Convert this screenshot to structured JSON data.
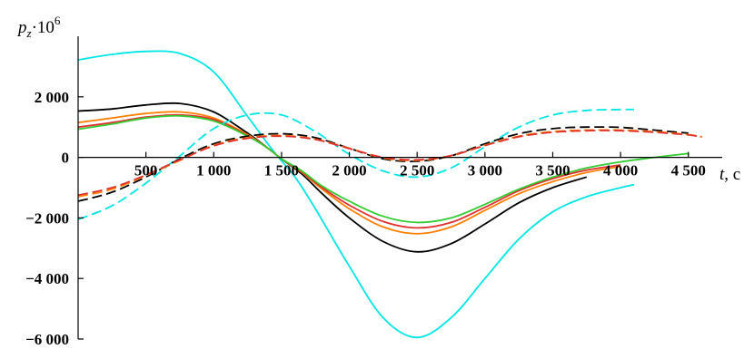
{
  "chart_data": {
    "type": "line",
    "title": "",
    "ylabel": {
      "base": "p",
      "sub": "z",
      "mult": "·10",
      "exp": "6"
    },
    "xlabel": {
      "var": "t",
      "unit": ", c"
    },
    "xlim": [
      0,
      4850
    ],
    "ylim": [
      -6000,
      4000
    ],
    "x_ticks": [
      500,
      1000,
      1500,
      2000,
      2500,
      3000,
      3500,
      4000,
      4500
    ],
    "x_tick_labels": [
      "500",
      "1 000",
      "1 500",
      "2 000",
      "2 500",
      "3 000",
      "3 500",
      "4 000",
      "4 500"
    ],
    "y_ticks": [
      -6000,
      -4000,
      -2000,
      0,
      2000
    ],
    "y_tick_labels": [
      "−6 000",
      "−4 000",
      "−2 000",
      "0",
      "2 000"
    ],
    "grid": false,
    "legend": "none",
    "series": [
      {
        "color": "#00e5e5",
        "style": "solid",
        "x": [
          0,
          250,
          500,
          750,
          1000,
          1250,
          1450,
          1600,
          1750,
          2000,
          2250,
          2500,
          2750,
          3000,
          3250,
          3500,
          3750,
          4000,
          4100
        ],
        "y": [
          3220,
          3400,
          3500,
          3430,
          2820,
          1350,
          150,
          -650,
          -1700,
          -3600,
          -5300,
          -5950,
          -5300,
          -4000,
          -2700,
          -1800,
          -1300,
          -1000,
          -900
        ]
      },
      {
        "color": "#000000",
        "style": "solid",
        "x": [
          0,
          250,
          500,
          750,
          1000,
          1250,
          1400,
          1500,
          1650,
          1800,
          2000,
          2250,
          2500,
          2750,
          3000,
          3250,
          3500,
          3750
        ],
        "y": [
          1530,
          1600,
          1730,
          1780,
          1500,
          800,
          300,
          -50,
          -550,
          -1200,
          -2000,
          -2780,
          -3120,
          -2850,
          -2200,
          -1500,
          -1000,
          -650
        ]
      },
      {
        "color": "#ff7f00",
        "style": "solid",
        "x": [
          0,
          250,
          500,
          750,
          1000,
          1250,
          1400,
          1500,
          1650,
          1800,
          2000,
          2250,
          2500,
          2750,
          3000,
          3250,
          3500,
          3750,
          4000
        ],
        "y": [
          1150,
          1300,
          1450,
          1500,
          1300,
          750,
          300,
          -50,
          -500,
          -1050,
          -1700,
          -2300,
          -2520,
          -2300,
          -1750,
          -1200,
          -800,
          -500,
          -300
        ]
      },
      {
        "color": "#e03030",
        "style": "solid",
        "x": [
          0,
          250,
          500,
          750,
          1000,
          1250,
          1400,
          1500,
          1650,
          1800,
          2000,
          2250,
          2500,
          2750,
          3000,
          3250,
          3500,
          3750,
          4000
        ],
        "y": [
          1000,
          1150,
          1330,
          1400,
          1250,
          720,
          300,
          -50,
          -480,
          -1000,
          -1580,
          -2120,
          -2330,
          -2150,
          -1650,
          -1100,
          -700,
          -420,
          -250
        ]
      },
      {
        "color": "#33cc33",
        "style": "solid",
        "x": [
          0,
          250,
          500,
          750,
          1000,
          1250,
          1400,
          1500,
          1650,
          1800,
          2000,
          2250,
          2500,
          2750,
          3000,
          3250,
          3500,
          3750,
          4000,
          4250,
          4500
        ],
        "y": [
          930,
          1100,
          1300,
          1370,
          1200,
          700,
          300,
          -50,
          -450,
          -950,
          -1450,
          -1950,
          -2150,
          -2000,
          -1550,
          -1050,
          -650,
          -350,
          -150,
          0,
          130
        ]
      },
      {
        "color": "#00e5e5",
        "style": "dashed",
        "x": [
          0,
          250,
          500,
          750,
          1000,
          1250,
          1500,
          1750,
          2000,
          2250,
          2500,
          2750,
          3000,
          3250,
          3500,
          3750,
          4000,
          4100
        ],
        "y": [
          -2050,
          -1600,
          -850,
          50,
          950,
          1400,
          1400,
          850,
          100,
          -450,
          -650,
          -350,
          350,
          1000,
          1400,
          1550,
          1580,
          1580
        ]
      },
      {
        "color": "#000000",
        "style": "dashed",
        "x": [
          0,
          250,
          500,
          750,
          1000,
          1250,
          1500,
          1750,
          2000,
          2250,
          2500,
          2750,
          3000,
          3250,
          3500,
          3750,
          4000,
          4250,
          4500
        ],
        "y": [
          -1450,
          -1150,
          -650,
          -50,
          450,
          700,
          780,
          650,
          300,
          -50,
          -130,
          50,
          450,
          780,
          950,
          1000,
          990,
          900,
          800
        ]
      },
      {
        "color": "#ff7f00",
        "style": "dashed",
        "x": [
          0,
          250,
          500,
          750,
          1000,
          1250,
          1500,
          1750,
          2000,
          2250,
          2500,
          2750,
          3000,
          3250,
          3500,
          3750,
          4000,
          4250,
          4500,
          4600
        ],
        "y": [
          -1300,
          -1050,
          -600,
          -100,
          400,
          650,
          720,
          600,
          300,
          -20,
          -100,
          50,
          400,
          700,
          850,
          900,
          900,
          850,
          750,
          680
        ]
      },
      {
        "color": "#e03030",
        "style": "dashed",
        "x": [
          0,
          250,
          500,
          750,
          1000,
          1250,
          1500,
          1750,
          2000,
          2250,
          2500,
          2750,
          3000,
          3250,
          3500,
          3750,
          4000,
          4250,
          4500,
          4600
        ],
        "y": [
          -1250,
          -1000,
          -580,
          -80,
          380,
          630,
          700,
          590,
          290,
          0,
          -80,
          60,
          390,
          680,
          830,
          880,
          880,
          830,
          740,
          670
        ]
      }
    ]
  }
}
